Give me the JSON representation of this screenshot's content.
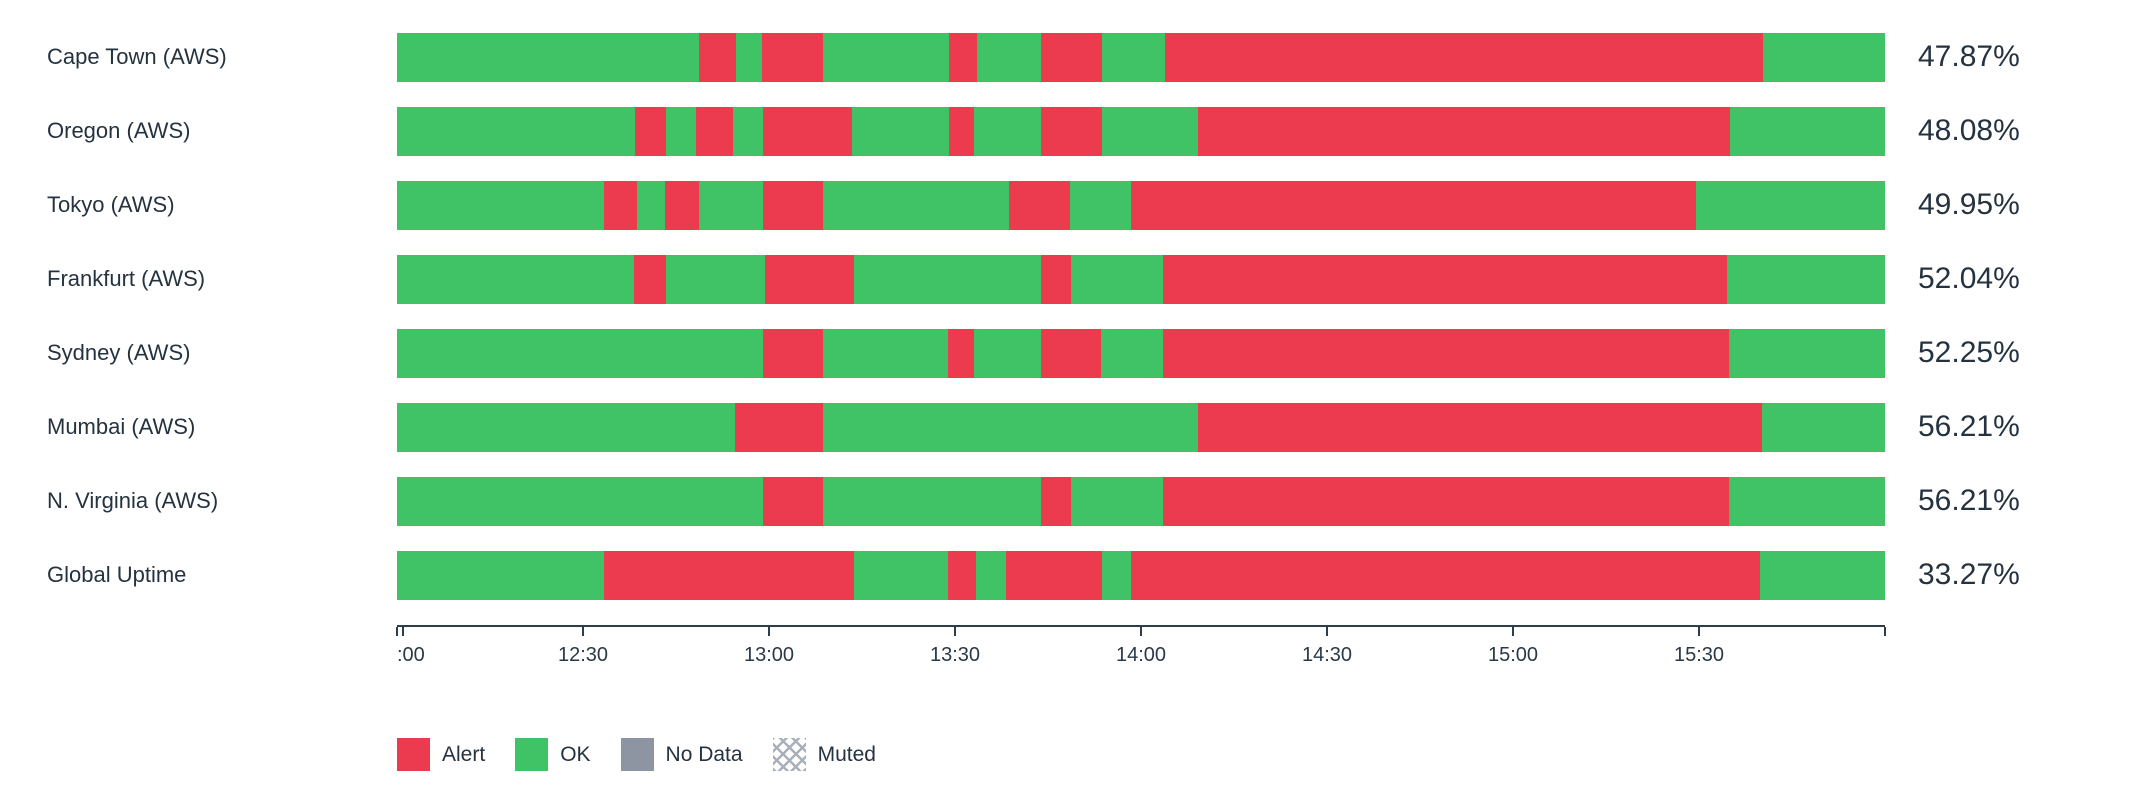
{
  "chart_data": {
    "type": "bar",
    "subtype": "status-timeline",
    "orientation": "horizontal",
    "title": "",
    "colors": {
      "alert": "#ec3a4e",
      "ok": "#3fc366",
      "no_data": "#8c95a1",
      "muted_pattern": "#a9b0ba",
      "text": "#253340",
      "axis": "#2e3d4a"
    },
    "rows": [
      {
        "label": "Cape Town (AWS)",
        "value": "47.87%",
        "segments": [
          [
            "ok",
            20.3
          ],
          [
            "alert",
            2.5
          ],
          [
            "ok",
            1.7
          ],
          [
            "alert",
            4.1
          ],
          [
            "ok",
            8.5
          ],
          [
            "alert",
            1.9
          ],
          [
            "ok",
            4.3
          ],
          [
            "alert",
            4.1
          ],
          [
            "ok",
            4.2
          ],
          [
            "alert",
            40.2
          ],
          [
            "ok",
            8.2
          ]
        ]
      },
      {
        "label": "Oregon (AWS)",
        "value": "48.08%",
        "segments": [
          [
            "ok",
            16.0
          ],
          [
            "alert",
            2.1
          ],
          [
            "ok",
            2.0
          ],
          [
            "alert",
            2.5
          ],
          [
            "ok",
            2.0
          ],
          [
            "alert",
            6.0
          ],
          [
            "ok",
            6.5
          ],
          [
            "alert",
            1.7
          ],
          [
            "ok",
            4.5
          ],
          [
            "alert",
            4.1
          ],
          [
            "ok",
            6.4
          ],
          [
            "alert",
            35.8
          ],
          [
            "ok",
            10.4
          ]
        ]
      },
      {
        "label": "Tokyo (AWS)",
        "value": "49.95%",
        "segments": [
          [
            "ok",
            13.9
          ],
          [
            "alert",
            2.2
          ],
          [
            "ok",
            1.9
          ],
          [
            "alert",
            2.3
          ],
          [
            "ok",
            4.3
          ],
          [
            "alert",
            4.0
          ],
          [
            "ok",
            12.5
          ],
          [
            "alert",
            4.1
          ],
          [
            "ok",
            4.1
          ],
          [
            "alert",
            38.0
          ],
          [
            "ok",
            12.7
          ]
        ]
      },
      {
        "label": "Frankfurt (AWS)",
        "value": "52.04%",
        "segments": [
          [
            "ok",
            15.9
          ],
          [
            "alert",
            2.2
          ],
          [
            "ok",
            6.6
          ],
          [
            "alert",
            6.0
          ],
          [
            "ok",
            12.6
          ],
          [
            "alert",
            2.0
          ],
          [
            "ok",
            6.2
          ],
          [
            "alert",
            37.9
          ],
          [
            "ok",
            10.6
          ]
        ]
      },
      {
        "label": "Sydney (AWS)",
        "value": "52.25%",
        "segments": [
          [
            "ok",
            24.6
          ],
          [
            "alert",
            4.0
          ],
          [
            "ok",
            8.4
          ],
          [
            "alert",
            1.8
          ],
          [
            "ok",
            4.5
          ],
          [
            "alert",
            4.0
          ],
          [
            "ok",
            4.2
          ],
          [
            "alert",
            38.0
          ],
          [
            "ok",
            10.5
          ]
        ]
      },
      {
        "label": "Mumbai (AWS)",
        "value": "56.21%",
        "segments": [
          [
            "ok",
            22.7
          ],
          [
            "alert",
            5.9
          ],
          [
            "ok",
            25.2
          ],
          [
            "alert",
            37.9
          ],
          [
            "ok",
            8.3
          ]
        ]
      },
      {
        "label": "N. Virginia (AWS)",
        "value": "56.21%",
        "segments": [
          [
            "ok",
            24.6
          ],
          [
            "alert",
            4.0
          ],
          [
            "ok",
            14.7
          ],
          [
            "alert",
            2.0
          ],
          [
            "ok",
            6.2
          ],
          [
            "alert",
            38.0
          ],
          [
            "ok",
            10.5
          ]
        ]
      },
      {
        "label": "Global Uptime",
        "value": "33.27%",
        "segments": [
          [
            "ok",
            13.9
          ],
          [
            "alert",
            16.8
          ],
          [
            "ok",
            6.3
          ],
          [
            "alert",
            1.9
          ],
          [
            "ok",
            2.0
          ],
          [
            "alert",
            6.5
          ],
          [
            "ok",
            1.9
          ],
          [
            "alert",
            42.3
          ],
          [
            "ok",
            8.4
          ]
        ]
      }
    ],
    "axis": {
      "ticks": [
        {
          "pos": 0,
          "label": "",
          "align": "center"
        },
        {
          "pos": 0.4,
          "label": ":00",
          "align": "left"
        },
        {
          "pos": 12.5,
          "label": "12:30",
          "align": "center"
        },
        {
          "pos": 25,
          "label": "13:00",
          "align": "center"
        },
        {
          "pos": 37.5,
          "label": "13:30",
          "align": "center"
        },
        {
          "pos": 50,
          "label": "14:00",
          "align": "center"
        },
        {
          "pos": 62.5,
          "label": "14:30",
          "align": "center"
        },
        {
          "pos": 75,
          "label": "15:00",
          "align": "center"
        },
        {
          "pos": 87.5,
          "label": "15:30",
          "align": "center"
        },
        {
          "pos": 100,
          "label": "",
          "align": "center"
        }
      ]
    },
    "legend": [
      {
        "id": "alert",
        "label": "Alert"
      },
      {
        "id": "ok",
        "label": "OK"
      },
      {
        "id": "no_data",
        "label": "No Data"
      },
      {
        "id": "muted",
        "label": "Muted"
      }
    ]
  }
}
